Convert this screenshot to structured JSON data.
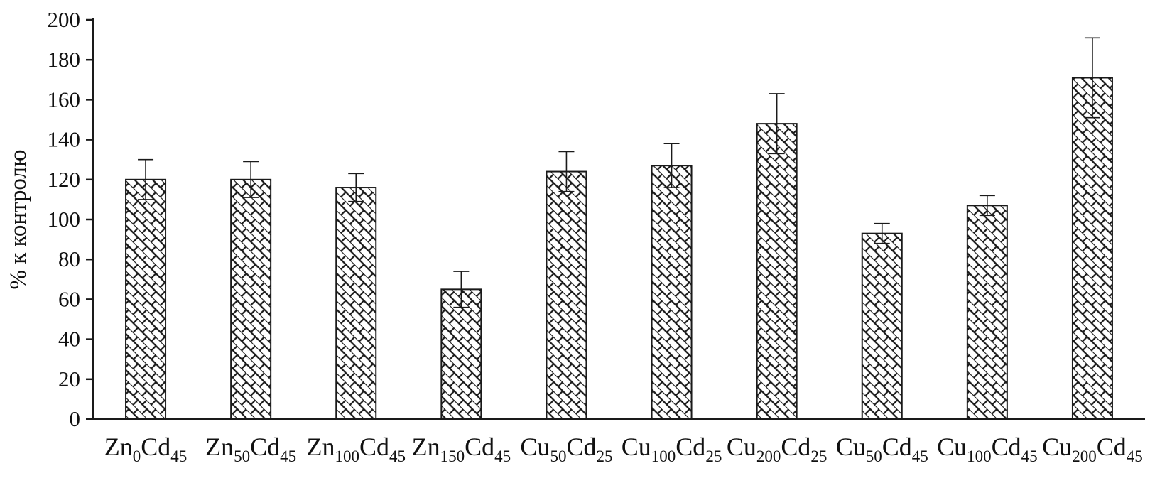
{
  "chart_data": {
    "type": "bar",
    "title": "",
    "xlabel": "",
    "ylabel": "% к контролю",
    "ylim": [
      0,
      200
    ],
    "ytick_step": 20,
    "ytick_labels": [
      "0",
      "20",
      "40",
      "60",
      "80",
      "100",
      "120",
      "140",
      "160",
      "180",
      "200"
    ],
    "grid": false,
    "legend": "none",
    "bar_fill_pattern": "diagonal-brick-hatch",
    "bar_stroke_color": "#1a1a1a",
    "background_color": "#ffffff",
    "categories": [
      "Zn_{0}Cd_{45}",
      "Zn_{50}Cd_{45}",
      "Zn_{100}Cd_{45}",
      "Zn_{150}Cd_{45}",
      "Cu_{50}Cd_{25}",
      "Cu_{100}Cd_{25}",
      "Cu_{200}Cd_{25}",
      "Cu_{50}Cd_{45}",
      "Cu_{100}Cd_{45}",
      "Cu_{200}Cd_{45}"
    ],
    "values": [
      120,
      120,
      116,
      65,
      124,
      127,
      148,
      93,
      107,
      171
    ],
    "errors": [
      10,
      9,
      7,
      9,
      10,
      11,
      15,
      5,
      5,
      20
    ]
  }
}
